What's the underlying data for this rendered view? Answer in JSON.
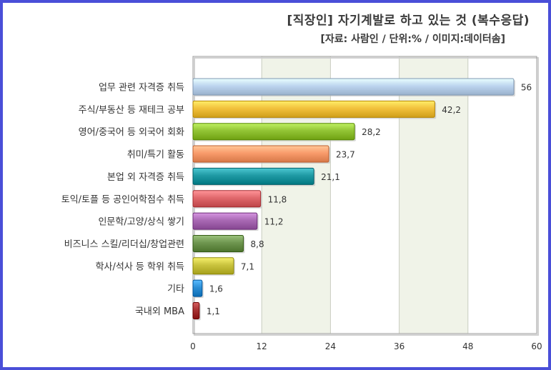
{
  "chart_data": {
    "type": "bar",
    "orientation": "horizontal",
    "title": "[직장인] 자기계발로 하고 있는 것 (복수응답)",
    "subtitle": "[자료: 사람인 / 단위:% / 이미지:데이터솜]",
    "categories": [
      "업무 관련 자격증 취득",
      "주식/부동산 등 재테크 공부",
      "영어/중국어 등 외국어 회화",
      "취미/특기 활동",
      "본업 외 자격증 취득",
      "토익/토플 등 공인어학점수 취득",
      "인문학/고양/상식 쌓기",
      "비즈니스 스킬/리더십/창업관련",
      "학사/석사 등 학위 취득",
      "기타",
      "국내외 MBA"
    ],
    "values": [
      56,
      42.2,
      28.2,
      23.7,
      21.1,
      11.8,
      11.2,
      8.8,
      7.1,
      1.6,
      1.1
    ],
    "value_labels": [
      "56",
      "42,2",
      "28,2",
      "23,7",
      "21,1",
      "11,8",
      "11,2",
      "8,8",
      "7,1",
      "1,6",
      "1,1"
    ],
    "colors": [
      "#bcd4ef",
      "#f2c13c",
      "#92c435",
      "#f99b6b",
      "#1f9aa4",
      "#e0686c",
      "#a969b4",
      "#6f9650",
      "#c9c33e",
      "#2d8fd6",
      "#a83233"
    ],
    "xlim": [
      0,
      60
    ],
    "xticks": [
      "0",
      "12",
      "24",
      "36",
      "48",
      "60"
    ],
    "grid": true,
    "grid_bands": [
      "#ffffff",
      "#f0f3e8"
    ],
    "frame_color": "#4a4fd8"
  }
}
